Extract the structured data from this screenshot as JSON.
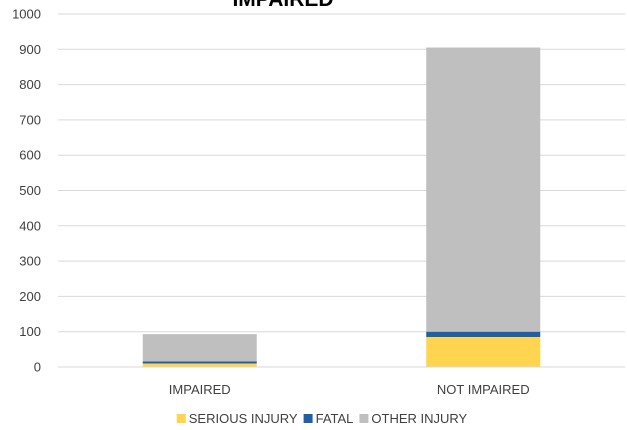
{
  "chart_data": {
    "type": "bar",
    "stacked": true,
    "title": "IMPAIRED",
    "categories": [
      "IMPAIRED",
      "NOT IMPAIRED"
    ],
    "series": [
      {
        "name": "SERIOUS INJURY",
        "values": [
          10,
          85
        ],
        "color": "#ffd44f"
      },
      {
        "name": "FATAL",
        "values": [
          6,
          15
        ],
        "color": "#1f5fa6"
      },
      {
        "name": "OTHER INJURY",
        "values": [
          77,
          805
        ],
        "color": "#bfbfbf"
      }
    ],
    "ylim": [
      0,
      1000
    ],
    "yticks": [
      0,
      100,
      200,
      300,
      400,
      500,
      600,
      700,
      800,
      900,
      1000
    ],
    "grid": true,
    "legend_position": "bottom",
    "xlabel": "",
    "ylabel": ""
  }
}
